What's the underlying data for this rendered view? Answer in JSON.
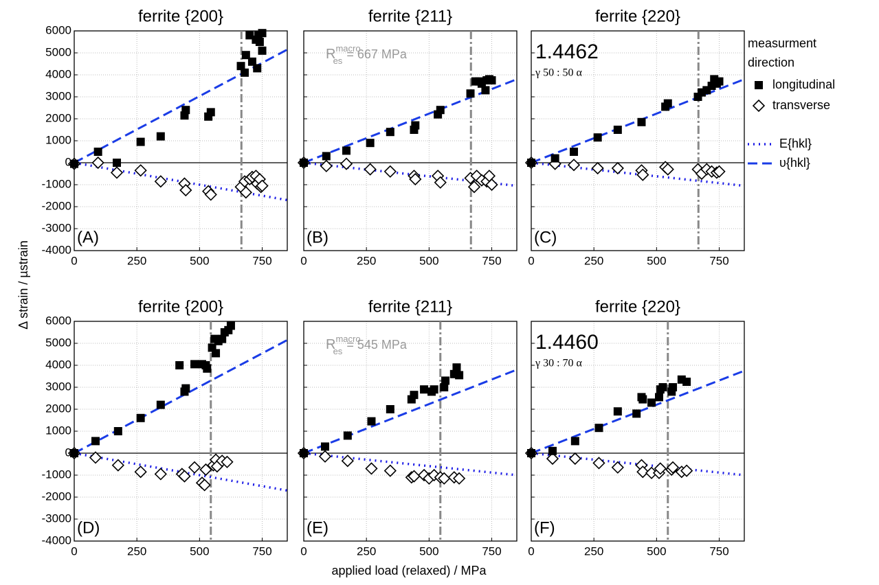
{
  "figure": {
    "xlabel": "applied load (relaxed) / MPa",
    "ylabel": "Δ strain / µstrain"
  },
  "legend": {
    "title": [
      "measurment",
      "direction"
    ],
    "entries": [
      {
        "label": "longitudinal",
        "marker": "square"
      },
      {
        "label": "transverse",
        "marker": "diamond"
      },
      {
        "label": "E{hkl}",
        "line": "dot",
        "color": "#1a1ae6"
      },
      {
        "label": "υ{hkl}",
        "line": "dash",
        "color": "#1a3ce6"
      }
    ]
  },
  "chart_data": [
    {
      "type": "scatter",
      "title": "ferrite {200}",
      "panel_label": "(A)",
      "xlim": [
        0,
        850
      ],
      "ylim": [
        -4000,
        6000
      ],
      "xticks": [
        0,
        250,
        500,
        750
      ],
      "yticks": [
        -4000,
        -3000,
        -2000,
        -1000,
        0,
        1000,
        2000,
        3000,
        4000,
        5000,
        6000
      ],
      "grid": true,
      "vline": 667,
      "series": [
        {
          "marker": "diamond",
          "x": [
            0,
            95,
            170,
            265,
            345,
            440,
            445,
            535,
            545,
            665,
            680,
            685,
            700,
            710,
            725,
            730,
            740,
            745,
            750
          ],
          "values": [
            -50,
            0,
            -450,
            -350,
            -850,
            -950,
            -1250,
            -1300,
            -1450,
            -1100,
            -850,
            -1350,
            -750,
            -650,
            -600,
            -950,
            -750,
            -1100,
            -1050
          ]
        },
        {
          "marker": "square",
          "x": [
            0,
            95,
            170,
            265,
            345,
            440,
            445,
            535,
            545,
            665,
            680,
            685,
            700,
            710,
            725,
            730,
            740,
            750,
            750,
            735
          ],
          "values": [
            -50,
            500,
            0,
            950,
            1200,
            2150,
            2400,
            2100,
            2300,
            4400,
            4100,
            4900,
            5800,
            4600,
            5600,
            4300,
            5500,
            5900,
            5100,
            5800
          ]
        }
      ],
      "fits": [
        {
          "line": "dash",
          "color": "#1a3ce6",
          "x": [
            0,
            850
          ],
          "values": [
            0,
            5150
          ]
        },
        {
          "line": "dot",
          "color": "#1a1ae6",
          "x": [
            0,
            850
          ],
          "values": [
            0,
            -1700
          ]
        }
      ]
    },
    {
      "type": "scatter",
      "title": "ferrite {211}",
      "panel_label": "(B)",
      "xlim": [
        0,
        850
      ],
      "ylim": [
        -4000,
        6000
      ],
      "xticks": [
        0,
        250,
        500,
        750
      ],
      "yticks": [
        -4000,
        -3000,
        -2000,
        -1000,
        0,
        1000,
        2000,
        3000,
        4000,
        5000,
        6000
      ],
      "grid": true,
      "vline": 667,
      "annotation": {
        "base": "R",
        "sub": "es",
        "sup": "macro",
        "rest": "= 667 MPa"
      },
      "series": [
        {
          "marker": "diamond",
          "x": [
            0,
            90,
            170,
            265,
            345,
            440,
            445,
            535,
            545,
            665,
            680,
            690,
            710,
            730,
            740,
            750
          ],
          "values": [
            0,
            -150,
            -50,
            -300,
            -400,
            -600,
            -750,
            -600,
            -900,
            -700,
            -1100,
            -600,
            -800,
            -850,
            -600,
            -1000
          ]
        },
        {
          "marker": "square",
          "x": [
            0,
            90,
            170,
            265,
            345,
            440,
            445,
            535,
            545,
            665,
            685,
            700,
            710,
            725,
            730,
            740,
            750
          ],
          "values": [
            0,
            300,
            550,
            900,
            1400,
            1500,
            1700,
            2200,
            2400,
            3150,
            3700,
            3700,
            3600,
            3300,
            3750,
            3800,
            3750
          ]
        }
      ],
      "fits": [
        {
          "line": "dash",
          "color": "#1a3ce6",
          "x": [
            0,
            850
          ],
          "values": [
            0,
            3800
          ]
        },
        {
          "line": "dot",
          "color": "#1a1ae6",
          "x": [
            0,
            850
          ],
          "values": [
            0,
            -1050
          ]
        }
      ]
    },
    {
      "type": "scatter",
      "title": "ferrite {220}",
      "panel_label": "(C)",
      "xlim": [
        0,
        850
      ],
      "ylim": [
        -4000,
        6000
      ],
      "xticks": [
        0,
        250,
        500,
        750
      ],
      "yticks": [
        -4000,
        -3000,
        -2000,
        -1000,
        0,
        1000,
        2000,
        3000,
        4000,
        5000,
        6000
      ],
      "grid": true,
      "vline": 667,
      "note_value": "1.4462",
      "note_ratio": "γ 50 : 50 α",
      "series": [
        {
          "marker": "diamond",
          "x": [
            0,
            95,
            170,
            265,
            345,
            440,
            445,
            535,
            545,
            665,
            680,
            700,
            720,
            740,
            750
          ],
          "values": [
            0,
            -50,
            -100,
            -250,
            -250,
            -350,
            -550,
            -200,
            -300,
            -300,
            -500,
            -300,
            -400,
            -450,
            -400
          ]
        },
        {
          "marker": "square",
          "x": [
            0,
            95,
            170,
            265,
            345,
            440,
            535,
            545,
            665,
            680,
            700,
            720,
            730,
            740,
            750
          ],
          "values": [
            0,
            200,
            500,
            1150,
            1500,
            1850,
            2550,
            2700,
            3000,
            3200,
            3300,
            3500,
            3800,
            3600,
            3700
          ]
        }
      ],
      "fits": [
        {
          "line": "dash",
          "color": "#1a3ce6",
          "x": [
            0,
            850
          ],
          "values": [
            0,
            3800
          ]
        },
        {
          "line": "dot",
          "color": "#1a1ae6",
          "x": [
            0,
            850
          ],
          "values": [
            0,
            -1050
          ]
        }
      ]
    },
    {
      "type": "scatter",
      "title": "ferrite {200}",
      "panel_label": "(D)",
      "xlim": [
        0,
        850
      ],
      "ylim": [
        -4000,
        6000
      ],
      "xticks": [
        0,
        250,
        500,
        750
      ],
      "yticks": [
        -4000,
        -3000,
        -2000,
        -1000,
        0,
        1000,
        2000,
        3000,
        4000,
        5000,
        6000
      ],
      "grid": true,
      "vline": 545,
      "series": [
        {
          "marker": "diamond",
          "x": [
            0,
            85,
            175,
            265,
            345,
            430,
            440,
            480,
            510,
            520,
            525,
            555,
            565,
            570,
            590,
            610
          ],
          "values": [
            0,
            -200,
            -550,
            -850,
            -950,
            -950,
            -1050,
            -650,
            -1350,
            -1450,
            -750,
            -550,
            -300,
            -600,
            -350,
            -400
          ]
        },
        {
          "marker": "square",
          "x": [
            0,
            85,
            175,
            265,
            345,
            420,
            440,
            445,
            480,
            510,
            525,
            530,
            550,
            560,
            565,
            575,
            590,
            600,
            615,
            625
          ],
          "values": [
            0,
            550,
            1000,
            1600,
            2200,
            4000,
            2800,
            2950,
            4050,
            4050,
            4000,
            3850,
            4800,
            5200,
            4550,
            5100,
            5200,
            5500,
            5600,
            5800
          ]
        }
      ],
      "fits": [
        {
          "line": "dash",
          "color": "#1a3ce6",
          "x": [
            0,
            850
          ],
          "values": [
            0,
            5150
          ]
        },
        {
          "line": "dot",
          "color": "#1a1ae6",
          "x": [
            0,
            850
          ],
          "values": [
            0,
            -1700
          ]
        }
      ]
    },
    {
      "type": "scatter",
      "title": "ferrite {211}",
      "panel_label": "(E)",
      "xlim": [
        0,
        850
      ],
      "ylim": [
        -4000,
        6000
      ],
      "xticks": [
        0,
        250,
        500,
        750
      ],
      "yticks": [
        -4000,
        -3000,
        -2000,
        -1000,
        0,
        1000,
        2000,
        3000,
        4000,
        5000,
        6000
      ],
      "grid": true,
      "vline": 545,
      "annotation": {
        "base": "R",
        "sub": "es",
        "sup": "macro",
        "rest": "= 545 MPa"
      },
      "series": [
        {
          "marker": "diamond",
          "x": [
            0,
            85,
            175,
            270,
            345,
            430,
            440,
            480,
            500,
            520,
            545,
            560,
            600,
            620
          ],
          "values": [
            0,
            -150,
            -350,
            -700,
            -800,
            -1100,
            -1050,
            -1000,
            -1150,
            -1000,
            -1100,
            -1150,
            -1100,
            -1150
          ]
        },
        {
          "marker": "square",
          "x": [
            0,
            85,
            175,
            270,
            345,
            430,
            440,
            480,
            510,
            520,
            560,
            565,
            600,
            610,
            620
          ],
          "values": [
            0,
            300,
            800,
            1450,
            2000,
            2450,
            2650,
            2900,
            2800,
            2900,
            3000,
            3300,
            3600,
            3900,
            3550
          ]
        }
      ],
      "fits": [
        {
          "line": "dash",
          "color": "#1a3ce6",
          "x": [
            0,
            850
          ],
          "values": [
            0,
            3800
          ]
        },
        {
          "line": "dot",
          "color": "#1a1ae6",
          "x": [
            0,
            850
          ],
          "values": [
            0,
            -1000
          ]
        }
      ]
    },
    {
      "type": "scatter",
      "title": "ferrite {220}",
      "panel_label": "(F)",
      "xlim": [
        0,
        850
      ],
      "ylim": [
        -4000,
        6000
      ],
      "xticks": [
        0,
        250,
        500,
        750
      ],
      "yticks": [
        -4000,
        -3000,
        -2000,
        -1000,
        0,
        1000,
        2000,
        3000,
        4000,
        5000,
        6000
      ],
      "grid": true,
      "vline": 545,
      "note_value": "1.4460",
      "note_ratio": "γ 30 : 70 α",
      "series": [
        {
          "marker": "diamond",
          "x": [
            0,
            85,
            175,
            270,
            345,
            440,
            445,
            480,
            510,
            515,
            560,
            565,
            600,
            620
          ],
          "values": [
            0,
            -250,
            -250,
            -450,
            -650,
            -550,
            -850,
            -900,
            -900,
            -700,
            -750,
            -650,
            -850,
            -800
          ]
        },
        {
          "marker": "square",
          "x": [
            0,
            85,
            175,
            270,
            345,
            420,
            440,
            445,
            480,
            510,
            515,
            525,
            560,
            565,
            600,
            620
          ],
          "values": [
            0,
            100,
            550,
            1150,
            1900,
            1800,
            2550,
            2450,
            2300,
            2550,
            2900,
            3000,
            2800,
            3000,
            3350,
            3250
          ]
        }
      ],
      "fits": [
        {
          "line": "dash",
          "color": "#1a3ce6",
          "x": [
            0,
            850
          ],
          "values": [
            0,
            3750
          ]
        },
        {
          "line": "dot",
          "color": "#1a1ae6",
          "x": [
            0,
            850
          ],
          "values": [
            0,
            -1000
          ]
        }
      ]
    }
  ]
}
